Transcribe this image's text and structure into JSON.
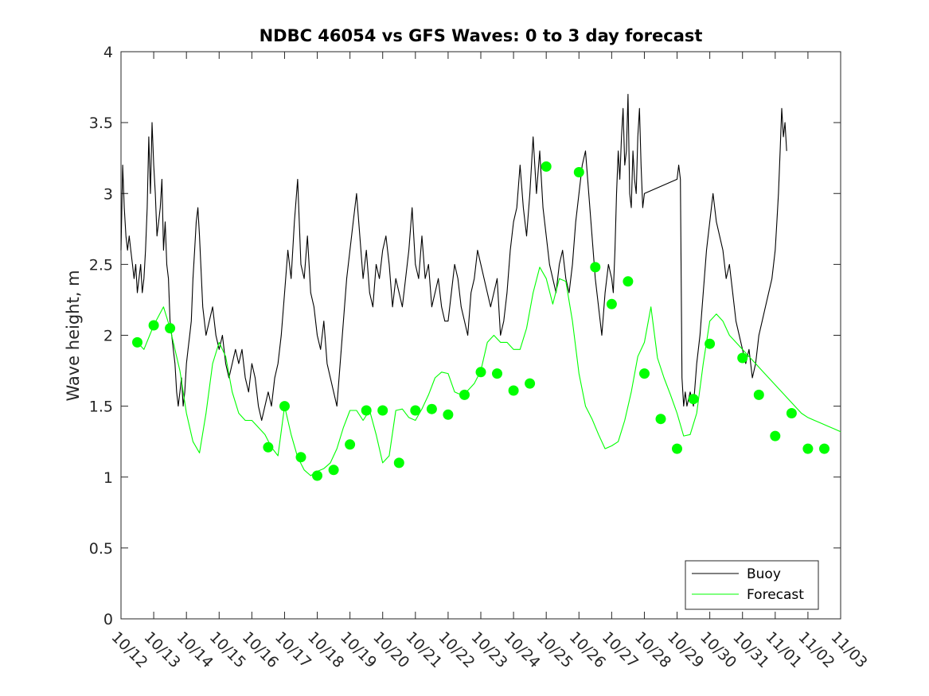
{
  "chart_data": {
    "type": "line",
    "title": "NDBC 46054 vs GFS Waves: 0 to 3 day forecast",
    "xlabel": "",
    "ylabel": "Wave height, m",
    "xlim": [
      0,
      22
    ],
    "ylim": [
      0,
      4
    ],
    "yticks": [
      0,
      0.5,
      1,
      1.5,
      2,
      2.5,
      3,
      3.5,
      4
    ],
    "yticklabels": [
      "0",
      "0.5",
      "1",
      "1.5",
      "2",
      "2.5",
      "3",
      "3.5",
      "4"
    ],
    "xticks": [
      0,
      1,
      2,
      3,
      4,
      5,
      6,
      7,
      8,
      9,
      10,
      11,
      12,
      13,
      14,
      15,
      16,
      17,
      18,
      19,
      20,
      21,
      22
    ],
    "xticklabels": [
      "10/12",
      "10/13",
      "10/14",
      "10/15",
      "10/16",
      "10/17",
      "10/18",
      "10/19",
      "10/20",
      "10/21",
      "10/22",
      "10/23",
      "10/24",
      "10/25",
      "10/26",
      "10/27",
      "10/28",
      "10/29",
      "10/30",
      "10/31",
      "11/01",
      "11/02",
      "11/03"
    ],
    "legend": {
      "position": "bottom-right",
      "entries": [
        "Buoy",
        "Forecast"
      ]
    },
    "colors": {
      "buoy": "#000000",
      "forecast": "#00ff00",
      "axes": "#262626"
    },
    "series": [
      {
        "name": "Buoy",
        "x": [
          0,
          0.05,
          0.1,
          0.15,
          0.2,
          0.25,
          0.3,
          0.35,
          0.4,
          0.45,
          0.5,
          0.55,
          0.6,
          0.65,
          0.7,
          0.75,
          0.8,
          0.85,
          0.9,
          0.95,
          1.0,
          1.05,
          1.1,
          1.15,
          1.2,
          1.25,
          1.3,
          1.35,
          1.4,
          1.45,
          1.5,
          1.55,
          1.6,
          1.65,
          1.7,
          1.75,
          1.8,
          1.85,
          1.9,
          1.95,
          2.0,
          2.05,
          2.1,
          2.15,
          2.2,
          2.25,
          2.3,
          2.35,
          2.4,
          2.5,
          2.6,
          2.7,
          2.8,
          2.9,
          3.0,
          3.1,
          3.2,
          3.3,
          3.4,
          3.5,
          3.6,
          3.7,
          3.8,
          3.9,
          4.0,
          4.1,
          4.2,
          4.3,
          4.4,
          4.5,
          4.6,
          4.7,
          4.8,
          4.9,
          5.0,
          5.1,
          5.2,
          5.3,
          5.4,
          5.5,
          5.6,
          5.7,
          5.8,
          5.9,
          6.0,
          6.1,
          6.2,
          6.3,
          6.4,
          6.5,
          6.6,
          6.7,
          6.8,
          6.9,
          7.0,
          7.1,
          7.2,
          7.3,
          7.4,
          7.5,
          7.6,
          7.7,
          7.8,
          7.9,
          8.0,
          8.1,
          8.2,
          8.3,
          8.4,
          8.5,
          8.6,
          8.7,
          8.8,
          8.9,
          9.0,
          9.1,
          9.2,
          9.3,
          9.4,
          9.5,
          9.6,
          9.7,
          9.8,
          9.9,
          10.0,
          10.1,
          10.2,
          10.3,
          10.4,
          10.5,
          10.6,
          10.7,
          10.8,
          10.9,
          11.0,
          11.1,
          11.2,
          11.3,
          11.4,
          11.5,
          11.6,
          11.7,
          11.8,
          11.9,
          12.0,
          12.1,
          12.2,
          12.3,
          12.4,
          12.5,
          12.6,
          12.7,
          12.8,
          12.9,
          13.0,
          13.1,
          13.2,
          13.3,
          13.4,
          13.5,
          13.6,
          13.7,
          13.8,
          13.9,
          14.0,
          14.1,
          14.2,
          14.3,
          14.4,
          14.5,
          14.6,
          14.7,
          14.8,
          14.9,
          15.0,
          15.05,
          15.1,
          15.15,
          15.2,
          15.25,
          15.3,
          15.35,
          15.4,
          15.45,
          15.5,
          15.55,
          15.6,
          15.65,
          15.7,
          15.75,
          15.8,
          15.85,
          15.9,
          15.95,
          16.0,
          17.0,
          17.05,
          17.1,
          17.15,
          17.2,
          17.25,
          17.3,
          17.4,
          17.5,
          17.6,
          17.7,
          17.8,
          17.9,
          18.0,
          18.1,
          18.2,
          18.3,
          18.4,
          18.5,
          18.6,
          18.7,
          18.8,
          18.9,
          19.0,
          19.1,
          19.2,
          19.3,
          19.4,
          19.5,
          19.6,
          19.7,
          19.8,
          19.9,
          20.0,
          20.05,
          20.1,
          20.15,
          20.2,
          20.25,
          20.3,
          20.35
        ],
        "values": [
          2.6,
          3.2,
          2.9,
          2.7,
          2.6,
          2.7,
          2.6,
          2.5,
          2.4,
          2.5,
          2.3,
          2.4,
          2.5,
          2.3,
          2.4,
          2.6,
          2.9,
          3.4,
          3.0,
          3.5,
          3.2,
          3.0,
          2.7,
          2.8,
          2.9,
          3.1,
          2.6,
          2.8,
          2.5,
          2.4,
          2.1,
          2.0,
          1.9,
          1.8,
          1.6,
          1.5,
          1.6,
          1.7,
          1.5,
          1.6,
          1.8,
          1.9,
          2.0,
          2.1,
          2.4,
          2.6,
          2.8,
          2.9,
          2.7,
          2.2,
          2.0,
          2.1,
          2.2,
          2.0,
          1.9,
          2.0,
          1.8,
          1.7,
          1.8,
          1.9,
          1.8,
          1.9,
          1.7,
          1.6,
          1.8,
          1.7,
          1.5,
          1.4,
          1.5,
          1.6,
          1.5,
          1.7,
          1.8,
          2.0,
          2.3,
          2.6,
          2.4,
          2.8,
          3.1,
          2.5,
          2.4,
          2.7,
          2.3,
          2.2,
          2.0,
          1.9,
          2.1,
          1.8,
          1.7,
          1.6,
          1.5,
          1.8,
          2.1,
          2.4,
          2.6,
          2.8,
          3.0,
          2.7,
          2.4,
          2.6,
          2.3,
          2.2,
          2.5,
          2.4,
          2.6,
          2.7,
          2.5,
          2.2,
          2.4,
          2.3,
          2.2,
          2.4,
          2.6,
          2.9,
          2.5,
          2.4,
          2.7,
          2.4,
          2.5,
          2.2,
          2.3,
          2.4,
          2.2,
          2.1,
          2.1,
          2.3,
          2.5,
          2.4,
          2.2,
          2.1,
          2.0,
          2.3,
          2.4,
          2.6,
          2.5,
          2.4,
          2.3,
          2.2,
          2.3,
          2.4,
          2.0,
          2.1,
          2.3,
          2.6,
          2.8,
          2.9,
          3.2,
          2.9,
          2.7,
          3.0,
          3.4,
          3.0,
          3.3,
          2.9,
          2.7,
          2.5,
          2.4,
          2.3,
          2.5,
          2.6,
          2.4,
          2.3,
          2.5,
          2.8,
          3.0,
          3.2,
          3.3,
          3.0,
          2.7,
          2.4,
          2.2,
          2.0,
          2.3,
          2.5,
          2.4,
          2.3,
          2.6,
          3.0,
          3.3,
          3.1,
          3.4,
          3.6,
          3.2,
          3.3,
          3.7,
          3.0,
          2.9,
          3.3,
          3.1,
          3.0,
          3.4,
          3.6,
          3.2,
          2.9,
          3.0,
          3.1,
          3.2,
          3.1,
          1.7,
          1.5,
          1.6,
          1.5,
          1.6,
          1.5,
          1.8,
          2.0,
          2.3,
          2.6,
          2.8,
          3.0,
          2.8,
          2.7,
          2.6,
          2.4,
          2.5,
          2.3,
          2.1,
          2.0,
          1.9,
          1.8,
          1.9,
          1.7,
          1.8,
          2.0,
          2.1,
          2.2,
          2.3,
          2.4,
          2.6,
          2.8,
          3.0,
          3.3,
          3.6,
          3.4,
          3.5,
          3.3
        ]
      },
      {
        "name": "Forecast",
        "x": [
          0.5,
          0.7,
          1.0,
          1.3,
          1.5,
          1.8,
          2.0,
          2.2,
          2.4,
          2.6,
          2.8,
          3.0,
          3.2,
          3.4,
          3.6,
          3.8,
          4.0,
          4.2,
          4.4,
          4.6,
          4.8,
          5.0,
          5.2,
          5.4,
          5.6,
          5.8,
          6.0,
          6.2,
          6.4,
          6.6,
          6.8,
          7.0,
          7.2,
          7.4,
          7.6,
          7.8,
          8.0,
          8.2,
          8.4,
          8.6,
          8.8,
          9.0,
          9.2,
          9.4,
          9.6,
          9.8,
          10.0,
          10.2,
          10.4,
          10.6,
          10.8,
          11.0,
          11.2,
          11.4,
          11.6,
          11.8,
          12.0,
          12.2,
          12.4,
          12.6,
          12.8,
          13.0,
          13.2,
          13.4,
          13.6,
          13.8,
          14.0,
          14.2,
          14.4,
          14.6,
          14.8,
          15.0,
          15.2,
          15.4,
          15.6,
          15.8,
          16.0,
          16.2,
          16.4,
          16.6,
          16.8,
          17.0,
          17.2,
          17.4,
          17.6,
          17.8,
          18.0,
          18.2,
          18.4,
          18.6,
          18.8,
          19.0,
          19.2,
          19.4,
          19.6,
          19.8,
          20.0,
          20.2,
          20.4,
          20.6,
          20.8,
          21.0,
          21.2,
          21.4,
          21.6,
          21.8,
          22.0
        ],
        "values": [
          1.95,
          1.9,
          2.07,
          2.2,
          2.05,
          1.75,
          1.45,
          1.25,
          1.17,
          1.45,
          1.8,
          1.95,
          1.85,
          1.6,
          1.45,
          1.4,
          1.4,
          1.35,
          1.3,
          1.21,
          1.15,
          1.5,
          1.3,
          1.14,
          1.05,
          1.01,
          1.04,
          1.06,
          1.1,
          1.2,
          1.35,
          1.47,
          1.47,
          1.4,
          1.47,
          1.3,
          1.1,
          1.15,
          1.47,
          1.48,
          1.42,
          1.4,
          1.48,
          1.58,
          1.7,
          1.74,
          1.73,
          1.6,
          1.58,
          1.61,
          1.66,
          1.75,
          1.95,
          2.0,
          1.95,
          1.95,
          1.9,
          1.9,
          2.05,
          2.3,
          2.48,
          2.4,
          2.22,
          2.4,
          2.38,
          2.1,
          1.73,
          1.5,
          1.41,
          1.3,
          1.2,
          1.22,
          1.25,
          1.4,
          1.6,
          1.85,
          1.95,
          2.2,
          1.84,
          1.7,
          1.58,
          1.45,
          1.29,
          1.3,
          1.45,
          1.8,
          2.1,
          2.15,
          2.1,
          2.0,
          1.95,
          1.9,
          1.85,
          1.8,
          1.75,
          1.7,
          1.65,
          1.6,
          1.55,
          1.5,
          1.45,
          1.42,
          1.4,
          1.38,
          1.36,
          1.34,
          1.32
        ]
      }
    ],
    "forecast_markers": {
      "x": [
        0.5,
        1.0,
        1.5,
        4.5,
        5.0,
        5.5,
        6.0,
        6.5,
        7.0,
        7.5,
        8.0,
        8.5,
        9.0,
        9.5,
        10.0,
        10.5,
        11.0,
        11.5,
        12.0,
        12.5,
        13.0,
        14.0,
        14.5,
        15.0,
        15.5,
        16.0,
        16.5,
        17.0,
        17.5,
        18.0,
        19.0,
        19.5,
        20.0,
        20.5,
        21.0,
        21.5
      ],
      "values": [
        1.95,
        2.07,
        2.05,
        1.21,
        1.5,
        1.14,
        1.01,
        1.05,
        1.23,
        1.47,
        1.47,
        1.1,
        1.47,
        1.48,
        1.44,
        1.58,
        1.74,
        1.73,
        1.61,
        1.66,
        3.19,
        3.15,
        2.48,
        2.22,
        2.38,
        1.73,
        1.41,
        1.2,
        1.55,
        1.94,
        1.84,
        1.58,
        1.29,
        1.45,
        1.2,
        1.2
      ]
    }
  }
}
